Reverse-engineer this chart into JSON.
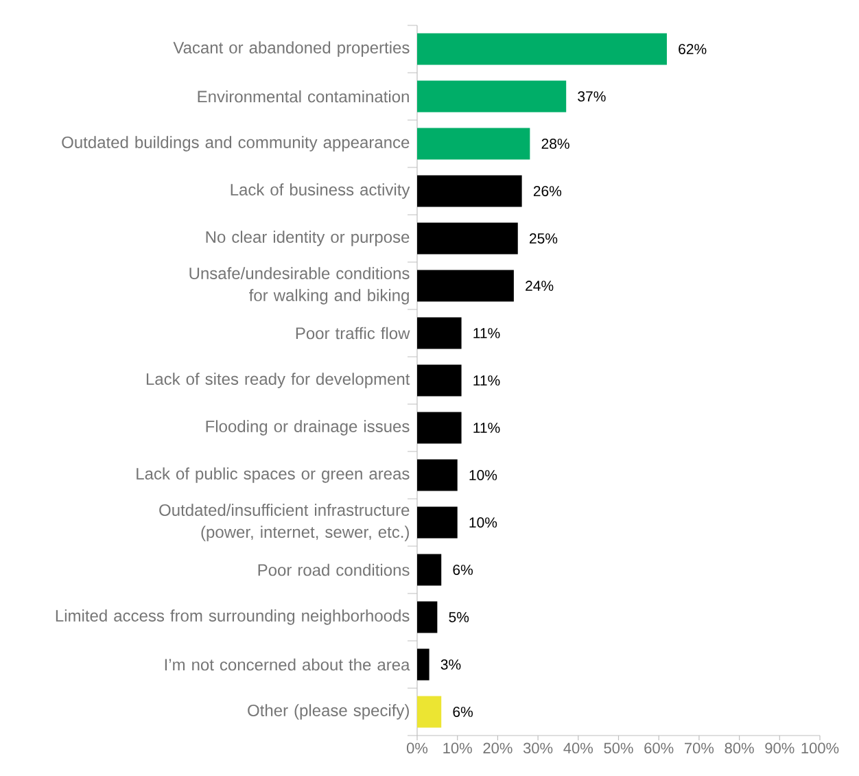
{
  "chart_data": {
    "type": "bar",
    "orientation": "horizontal",
    "categories": [
      "Vacant or abandoned properties",
      "Environmental contamination",
      "Outdated buildings and community appearance",
      "Lack of business activity",
      "No clear identity or purpose",
      "Unsafe/undesirable conditions for walking and biking",
      "Poor traffic flow",
      "Lack of sites ready for development",
      "Flooding or drainage issues",
      "Lack of public spaces or green areas",
      "Outdated/insufficient infrastructure (power, internet, sewer, etc.)",
      "Poor road conditions",
      "Limited access from surrounding neighborhoods",
      "I’m not concerned about the area",
      "Other (please specify)"
    ],
    "values": [
      62,
      37,
      28,
      26,
      25,
      24,
      11,
      11,
      11,
      10,
      10,
      6,
      5,
      3,
      6
    ],
    "value_labels": [
      "62%",
      "37%",
      "28%",
      "26%",
      "25%",
      "24%",
      "11%",
      "11%",
      "11%",
      "10%",
      "10%",
      "6%",
      "5%",
      "3%",
      "6%"
    ],
    "colors": [
      "#00ae68",
      "#00ae68",
      "#00ae68",
      "#000000",
      "#000000",
      "#000000",
      "#000000",
      "#000000",
      "#000000",
      "#000000",
      "#000000",
      "#000000",
      "#000000",
      "#000000",
      "#ece532"
    ],
    "xlim": [
      0,
      100
    ],
    "xticks": [
      {
        "value": 0,
        "label": "0%"
      },
      {
        "value": 10,
        "label": "10%"
      },
      {
        "value": 20,
        "label": "20%"
      },
      {
        "value": 30,
        "label": "30%"
      },
      {
        "value": 40,
        "label": "40%"
      },
      {
        "value": 50,
        "label": "50%"
      },
      {
        "value": 60,
        "label": "60%"
      },
      {
        "value": 70,
        "label": "70%"
      },
      {
        "value": 80,
        "label": "80%"
      },
      {
        "value": 90,
        "label": "90%"
      },
      {
        "value": 100,
        "label": "100%"
      }
    ],
    "grid": false
  }
}
